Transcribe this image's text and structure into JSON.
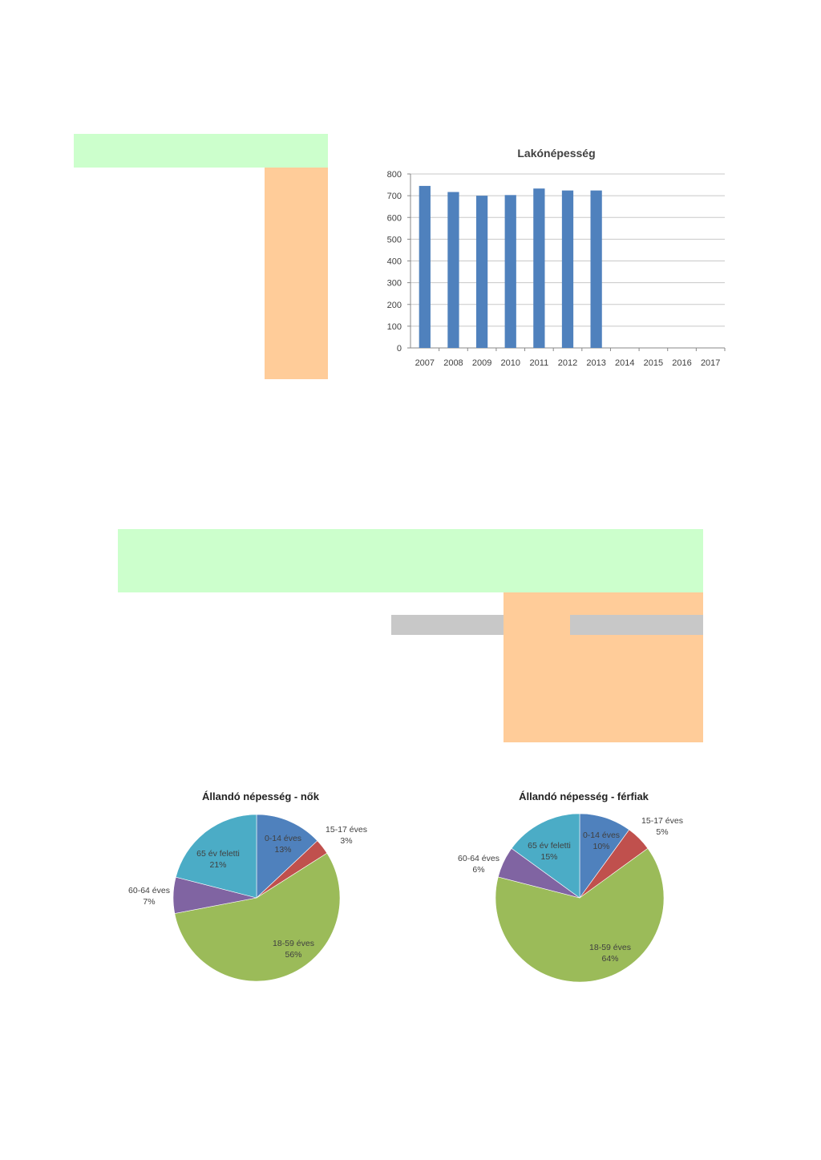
{
  "colors": {
    "bar": "#4f81bd",
    "highlight_green": "#ccffcc",
    "highlight_orange": "#ffcc99",
    "redacted_gray": "#c8c8c8",
    "pie": [
      "#4f81bd",
      "#c0504d",
      "#9bbb59",
      "#8064a2",
      "#4bacc6"
    ]
  },
  "chart_data": [
    {
      "type": "bar",
      "title": "Lakónépesség",
      "categories": [
        "2007",
        "2008",
        "2009",
        "2010",
        "2011",
        "2012",
        "2013",
        "2014",
        "2015",
        "2016",
        "2017"
      ],
      "values": [
        745,
        717,
        700,
        703,
        733,
        724,
        724,
        null,
        null,
        null,
        null
      ],
      "ylim": [
        0,
        800
      ],
      "yticks": [
        "0",
        "100",
        "200",
        "300",
        "400",
        "500",
        "600",
        "700",
        "800"
      ],
      "grid": true,
      "legend": "none"
    },
    {
      "type": "pie",
      "title": "Állandó népesség - nők",
      "slices": [
        {
          "label": "0-14 éves",
          "value": 13,
          "pct": "13%"
        },
        {
          "label": "15-17 éves",
          "value": 3,
          "pct": "3%"
        },
        {
          "label": "18-59 éves",
          "value": 56,
          "pct": "56%"
        },
        {
          "label": "60-64 éves",
          "value": 7,
          "pct": "7%"
        },
        {
          "label": "65 év feletti",
          "value": 21,
          "pct": "21%"
        }
      ]
    },
    {
      "type": "pie",
      "title": "Állandó népesség - férfiak",
      "slices": [
        {
          "label": "0-14 éves",
          "value": 10,
          "pct": "10%"
        },
        {
          "label": "15-17 éves",
          "value": 5,
          "pct": "5%"
        },
        {
          "label": "18-59 éves",
          "value": 64,
          "pct": "64%"
        },
        {
          "label": "60-64 éves",
          "value": 6,
          "pct": "6%"
        },
        {
          "label": "65 év feletti",
          "value": 15,
          "pct": "15%"
        }
      ]
    }
  ]
}
